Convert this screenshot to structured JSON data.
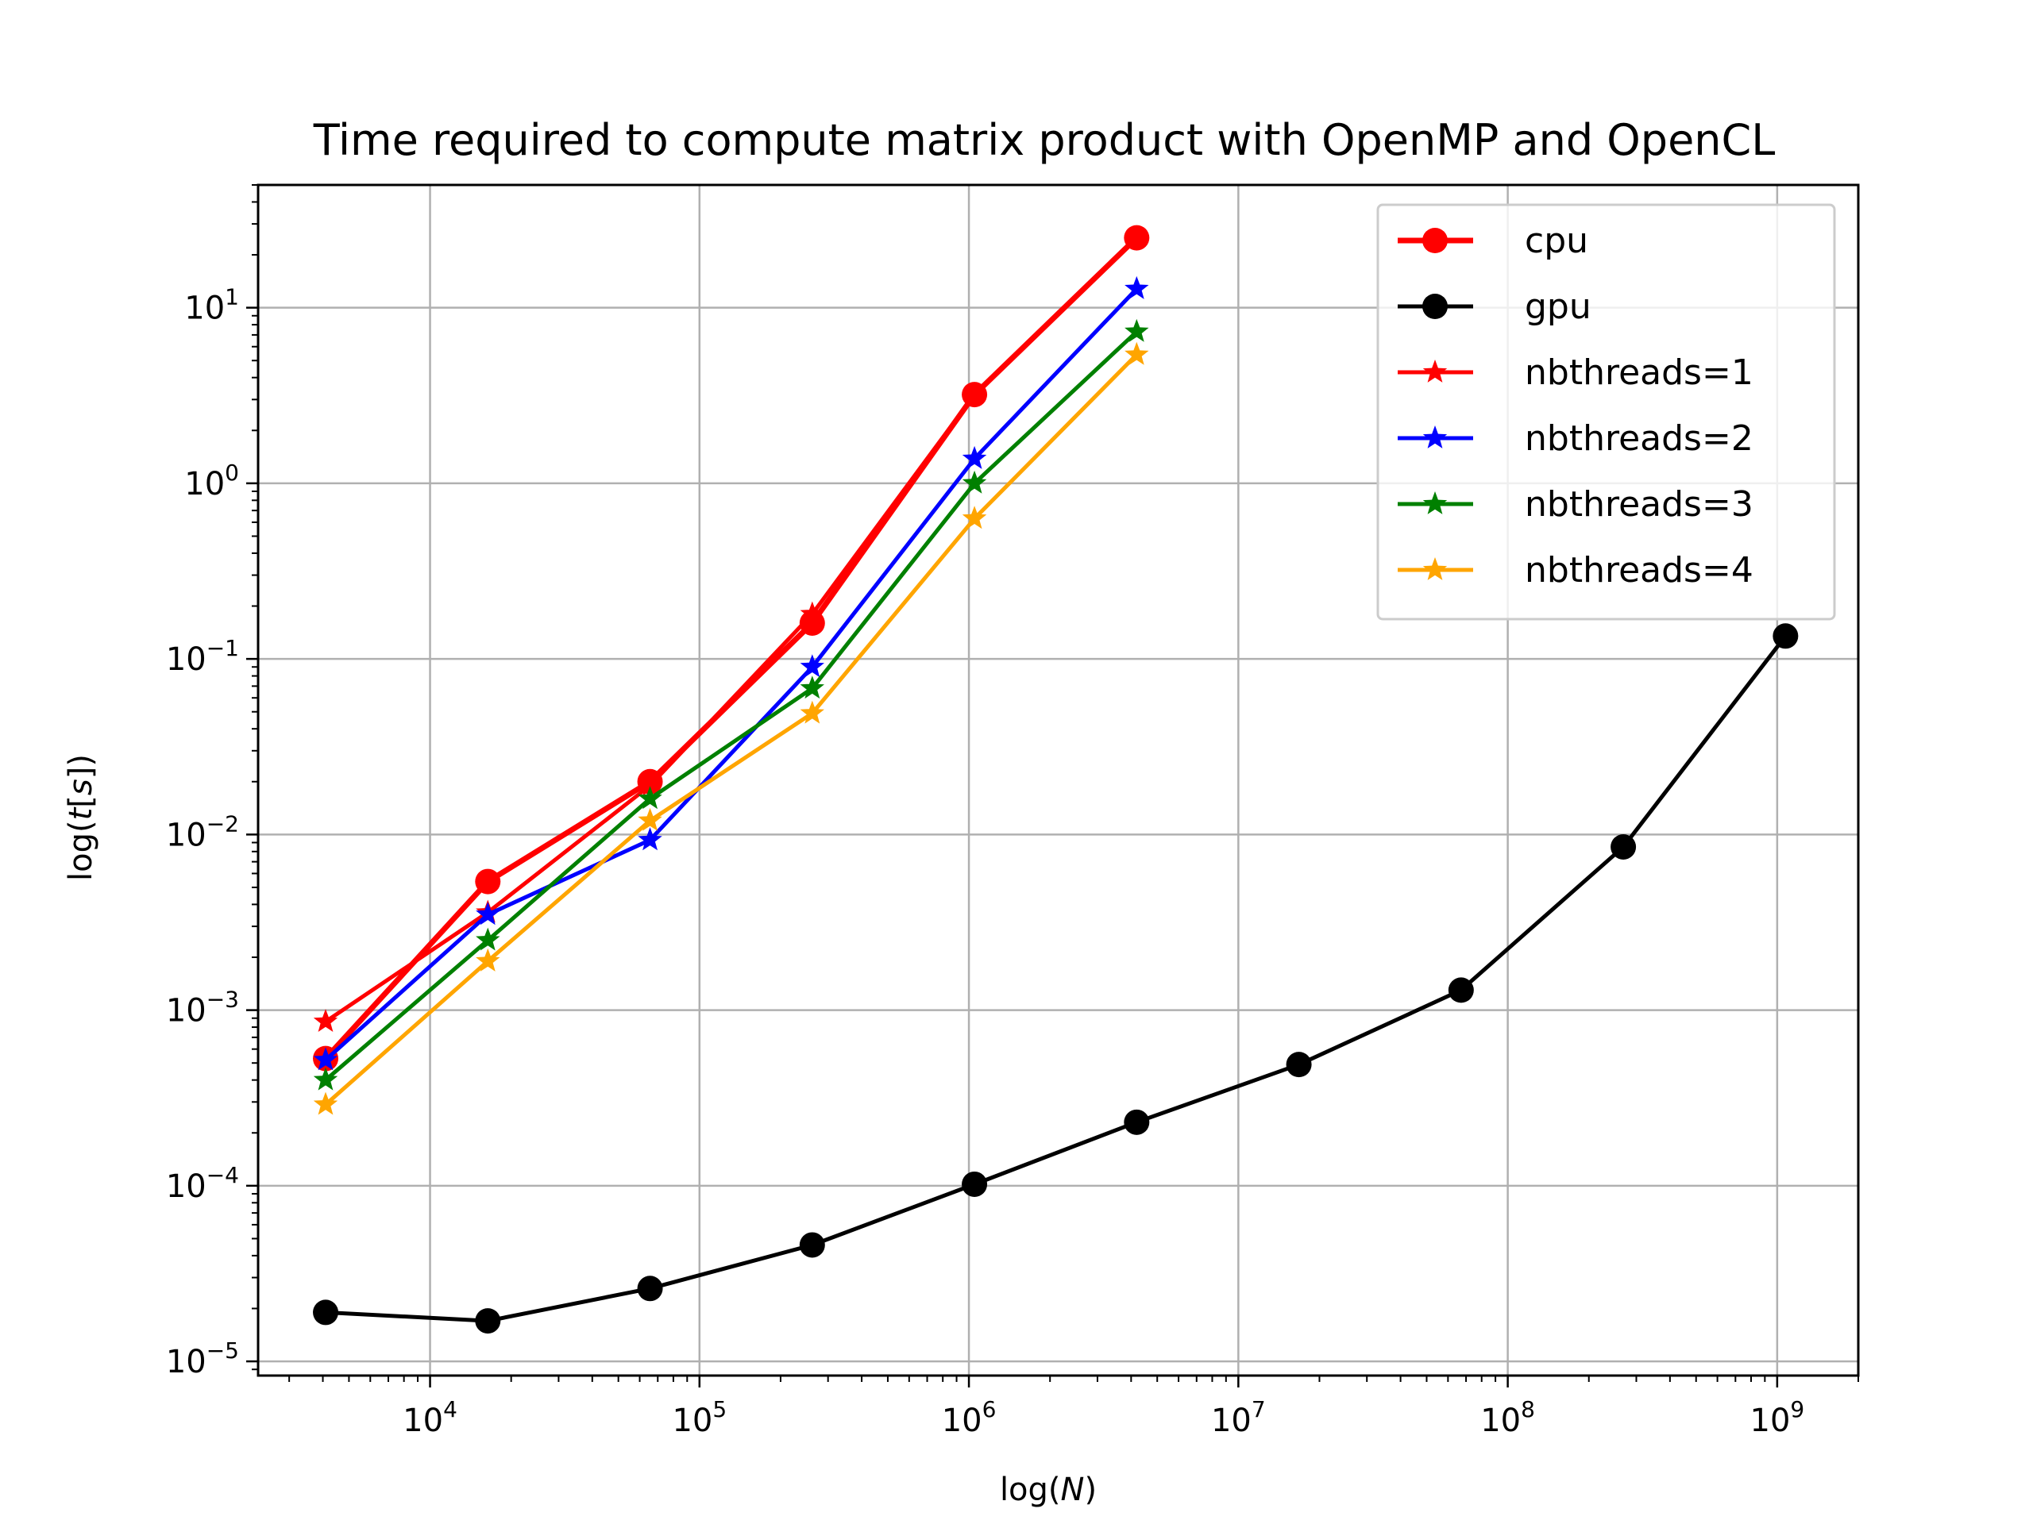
{
  "chart_data": {
    "type": "line",
    "title": "Time required to compute matrix product with OpenMP and OpenCL",
    "xlabel": {
      "prefix": "log(",
      "var": "N",
      "suffix": ")"
    },
    "ylabel": {
      "prefix": "log(",
      "var": "t",
      "mid": "[",
      "var2": "s",
      "suffix": "])"
    },
    "xscale": "log",
    "yscale": "log",
    "xlim": [
      2300,
      2000000000
    ],
    "ylim": [
      8.3e-06,
      50
    ],
    "grid": true,
    "legend_position": "top-right",
    "xticks": [
      {
        "value": 10000,
        "base": "10",
        "exp": "4"
      },
      {
        "value": 100000,
        "base": "10",
        "exp": "5"
      },
      {
        "value": 1000000,
        "base": "10",
        "exp": "6"
      },
      {
        "value": 10000000,
        "base": "10",
        "exp": "7"
      },
      {
        "value": 100000000,
        "base": "10",
        "exp": "8"
      },
      {
        "value": 1000000000,
        "base": "10",
        "exp": "9"
      }
    ],
    "yticks": [
      {
        "value": 1e-05,
        "base": "10",
        "exp": "−5"
      },
      {
        "value": 0.0001,
        "base": "10",
        "exp": "−4"
      },
      {
        "value": 0.001,
        "base": "10",
        "exp": "−3"
      },
      {
        "value": 0.01,
        "base": "10",
        "exp": "−2"
      },
      {
        "value": 0.1,
        "base": "10",
        "exp": "−1"
      },
      {
        "value": 1,
        "base": "10",
        "exp": "0"
      },
      {
        "value": 10,
        "base": "10",
        "exp": "1"
      }
    ],
    "series": [
      {
        "name": "cpu",
        "color": "#ff0000",
        "marker": "circle",
        "thick": true,
        "x": [
          4096,
          16384,
          65536,
          262144,
          1048576,
          4194304
        ],
        "y": [
          0.00053,
          0.0054,
          0.02,
          0.16,
          3.2,
          25
        ]
      },
      {
        "name": "gpu",
        "color": "#000000",
        "marker": "circle",
        "thick": false,
        "x": [
          4096,
          16384,
          65536,
          262144,
          1048576,
          4194304,
          16777216,
          67108864,
          268435456,
          1073741824
        ],
        "y": [
          1.9e-05,
          1.7e-05,
          2.6e-05,
          4.6e-05,
          0.000102,
          0.00023,
          0.00049,
          0.0013,
          0.0085,
          0.135
        ]
      },
      {
        "name": "nbthreads=1",
        "color": "#ff0000",
        "marker": "star",
        "thick": false,
        "x": [
          4096,
          16384,
          65536,
          262144,
          1048576,
          4194304
        ],
        "y": [
          0.00086,
          0.0036,
          0.019,
          0.18,
          3.2,
          25
        ]
      },
      {
        "name": "nbthreads=2",
        "color": "#0000ff",
        "marker": "star",
        "thick": false,
        "x": [
          4096,
          16384,
          65536,
          262144,
          1048576,
          4194304
        ],
        "y": [
          0.00052,
          0.0035,
          0.0093,
          0.09,
          1.38,
          12.8
        ]
      },
      {
        "name": "nbthreads=3",
        "color": "#008000",
        "marker": "star",
        "thick": false,
        "x": [
          4096,
          16384,
          65536,
          262144,
          1048576,
          4194304
        ],
        "y": [
          0.0004,
          0.0025,
          0.016,
          0.068,
          1.0,
          7.3
        ]
      },
      {
        "name": "nbthreads=4",
        "color": "#ffa500",
        "marker": "star",
        "thick": false,
        "x": [
          4096,
          16384,
          65536,
          262144,
          1048576,
          4194304
        ],
        "y": [
          0.00029,
          0.0019,
          0.012,
          0.049,
          0.63,
          5.4
        ]
      }
    ]
  }
}
